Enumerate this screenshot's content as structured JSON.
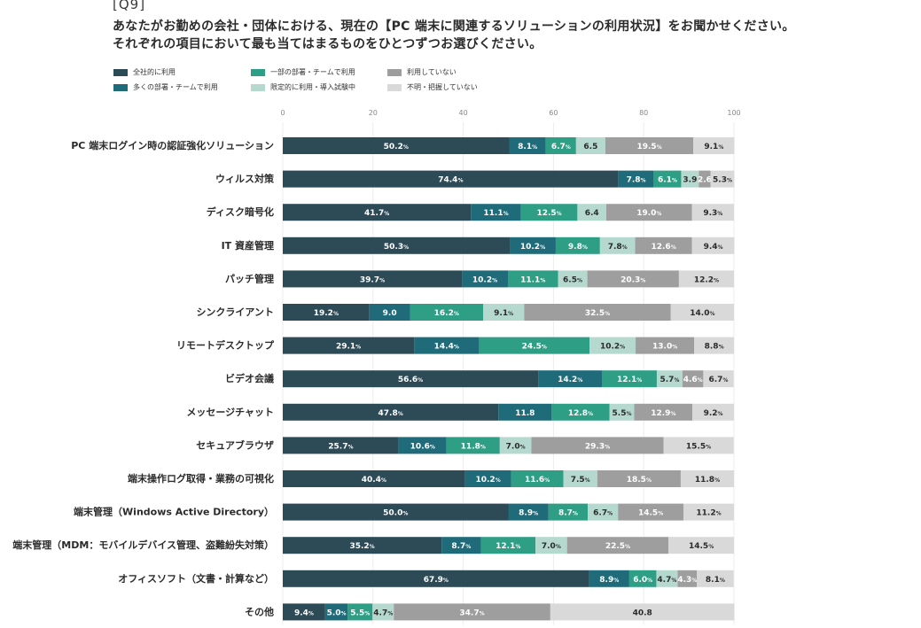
{
  "header": {
    "question_number": "[Q9]",
    "title_line1": "あなたがお勤めの会社・団体における、現在の【PC 端末に関連するソリューションの利用状況】をお聞かせください。",
    "title_line2": "それぞれの項目において最も当てはまるものをひとつずつお選びください。"
  },
  "colors": [
    "#2d4a57",
    "#1f6b7a",
    "#2e9e85",
    "#b6d9cf",
    "#9e9e9e",
    "#d9d9d9"
  ],
  "chart_data": {
    "type": "bar",
    "orientation": "horizontal",
    "stacked": true,
    "xlim": [
      0,
      100
    ],
    "xticks": [
      "0",
      "20",
      "40",
      "60",
      "80",
      "100"
    ],
    "legend_position": "top-left",
    "percent_suffix": "%",
    "categories": [
      "PC 端末ログイン時の認証強化ソリューション",
      "ウィルス対策",
      "ディスク暗号化",
      "IT 資産管理",
      "パッチ管理",
      "シンクライアント",
      "リモートデスクトップ",
      "ビデオ会議",
      "メッセージチャット",
      "セキュアブラウザ",
      "端末操作ログ取得・業務の可視化",
      "端末管理（Windows Active Directory）",
      "端末管理（MDM：モバイルデバイス管理、盗難紛失対策）",
      "オフィスソフト（文書・計算など）",
      "その他"
    ],
    "series": [
      {
        "name": "全社的に利用",
        "values": [
          50.2,
          74.4,
          41.7,
          50.3,
          39.7,
          19.2,
          29.1,
          56.6,
          47.8,
          25.7,
          40.4,
          50.0,
          35.2,
          67.9,
          9.4
        ]
      },
      {
        "name": "多くの部署・チームで利用",
        "values": [
          8.1,
          7.8,
          11.1,
          10.2,
          10.2,
          9.0,
          14.4,
          14.2,
          11.8,
          10.6,
          10.2,
          8.9,
          8.7,
          8.9,
          5.0
        ]
      },
      {
        "name": "一部の部署・チームで利用",
        "values": [
          6.7,
          6.1,
          12.5,
          9.8,
          11.1,
          16.2,
          24.5,
          12.1,
          12.8,
          11.8,
          11.6,
          8.7,
          12.1,
          6.0,
          5.5
        ]
      },
      {
        "name": "限定的に利用・導入試験中",
        "values": [
          6.5,
          3.9,
          6.4,
          7.8,
          6.5,
          9.1,
          10.2,
          5.7,
          5.5,
          7.0,
          7.5,
          6.7,
          7.0,
          4.7,
          4.7
        ]
      },
      {
        "name": "利用していない",
        "values": [
          19.5,
          2.6,
          19.0,
          12.6,
          20.3,
          32.5,
          13.0,
          4.6,
          12.9,
          29.3,
          18.5,
          14.5,
          22.5,
          4.3,
          34.7
        ]
      },
      {
        "name": "不明・把握していない",
        "values": [
          9.1,
          5.3,
          9.3,
          9.4,
          12.2,
          14.0,
          8.8,
          6.7,
          9.2,
          15.5,
          11.8,
          11.2,
          14.5,
          8.1,
          40.8
        ]
      }
    ],
    "value_labels": [
      [
        "50.2",
        "8.1",
        "6.7",
        "6.5",
        "19.5",
        "9.1"
      ],
      [
        "74.4",
        "7.8",
        "6.1",
        "3.9",
        "2.6",
        "5.3"
      ],
      [
        "41.7",
        "11.1",
        "12.5",
        "6.4",
        "19.0",
        "9.3"
      ],
      [
        "50.3",
        "10.2",
        "9.8",
        "7.8",
        "12.6",
        "9.4"
      ],
      [
        "39.7",
        "10.2",
        "11.1",
        "6.5",
        "20.3",
        "12.2"
      ],
      [
        "19.2",
        "9.0",
        "16.2",
        "9.1",
        "32.5",
        "14.0"
      ],
      [
        "29.1",
        "14.4",
        "24.5",
        "10.2",
        "13.0",
        "8.8"
      ],
      [
        "56.6",
        "14.2",
        "12.1",
        "5.7",
        "4.6",
        "6.7"
      ],
      [
        "47.8",
        "11.8",
        "12.8",
        "5.5",
        "12.9",
        "9.2"
      ],
      [
        "25.7",
        "10.6",
        "11.8",
        "7.0",
        "29.3",
        "15.5"
      ],
      [
        "40.4",
        "10.2",
        "11.6",
        "7.5",
        "18.5",
        "11.8"
      ],
      [
        "50.0",
        "8.9",
        "8.7",
        "6.7",
        "14.5",
        "11.2"
      ],
      [
        "35.2",
        "8.7",
        "12.1",
        "7.0",
        "22.5",
        "14.5"
      ],
      [
        "67.9",
        "8.9",
        "6.0",
        "4.7",
        "4.3",
        "8.1"
      ],
      [
        "9.4",
        "5.0",
        "5.5",
        "4.7",
        "34.7",
        "40.8"
      ]
    ],
    "value_label_suffix": [
      [
        true,
        true,
        true,
        false,
        true,
        true
      ],
      [
        true,
        true,
        true,
        false,
        false,
        true
      ],
      [
        true,
        true,
        true,
        false,
        true,
        true
      ],
      [
        true,
        true,
        true,
        true,
        true,
        true
      ],
      [
        true,
        true,
        true,
        true,
        true,
        true
      ],
      [
        true,
        false,
        true,
        true,
        true,
        true
      ],
      [
        true,
        true,
        true,
        true,
        true,
        true
      ],
      [
        true,
        true,
        true,
        true,
        true,
        true
      ],
      [
        true,
        false,
        true,
        true,
        true,
        true
      ],
      [
        true,
        true,
        true,
        true,
        true,
        true
      ],
      [
        true,
        true,
        true,
        true,
        true,
        true
      ],
      [
        true,
        true,
        true,
        true,
        true,
        true
      ],
      [
        true,
        true,
        true,
        true,
        true,
        true
      ],
      [
        true,
        true,
        true,
        true,
        true,
        true
      ],
      [
        true,
        true,
        true,
        true,
        true,
        false
      ]
    ]
  }
}
